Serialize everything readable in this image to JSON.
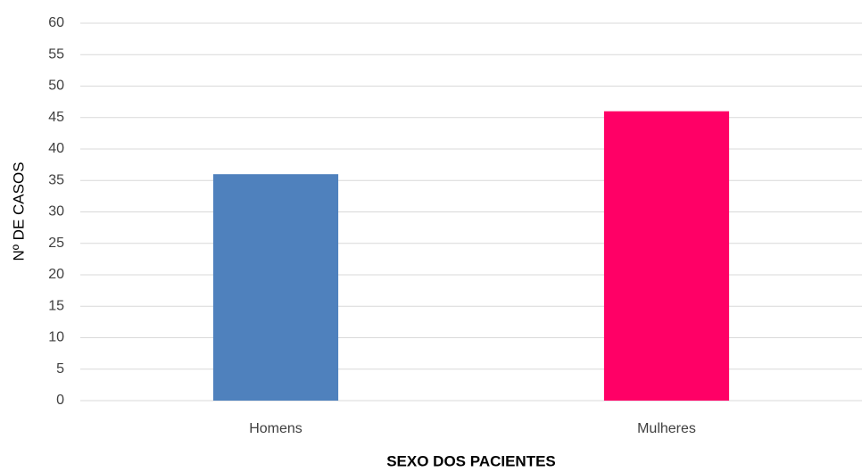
{
  "chart_data": {
    "type": "bar",
    "categories": [
      "Homens",
      "Mulheres"
    ],
    "values": [
      36,
      46
    ],
    "colors": [
      "#4f81bd",
      "#ff0066"
    ],
    "x_label": "SEXO DOS PACIENTES",
    "y_label": "Nº DE CASOS",
    "ylim": [
      0,
      60
    ],
    "yticks": [
      0,
      5,
      10,
      15,
      20,
      25,
      30,
      35,
      40,
      45,
      50,
      55,
      60
    ],
    "grid": true
  }
}
